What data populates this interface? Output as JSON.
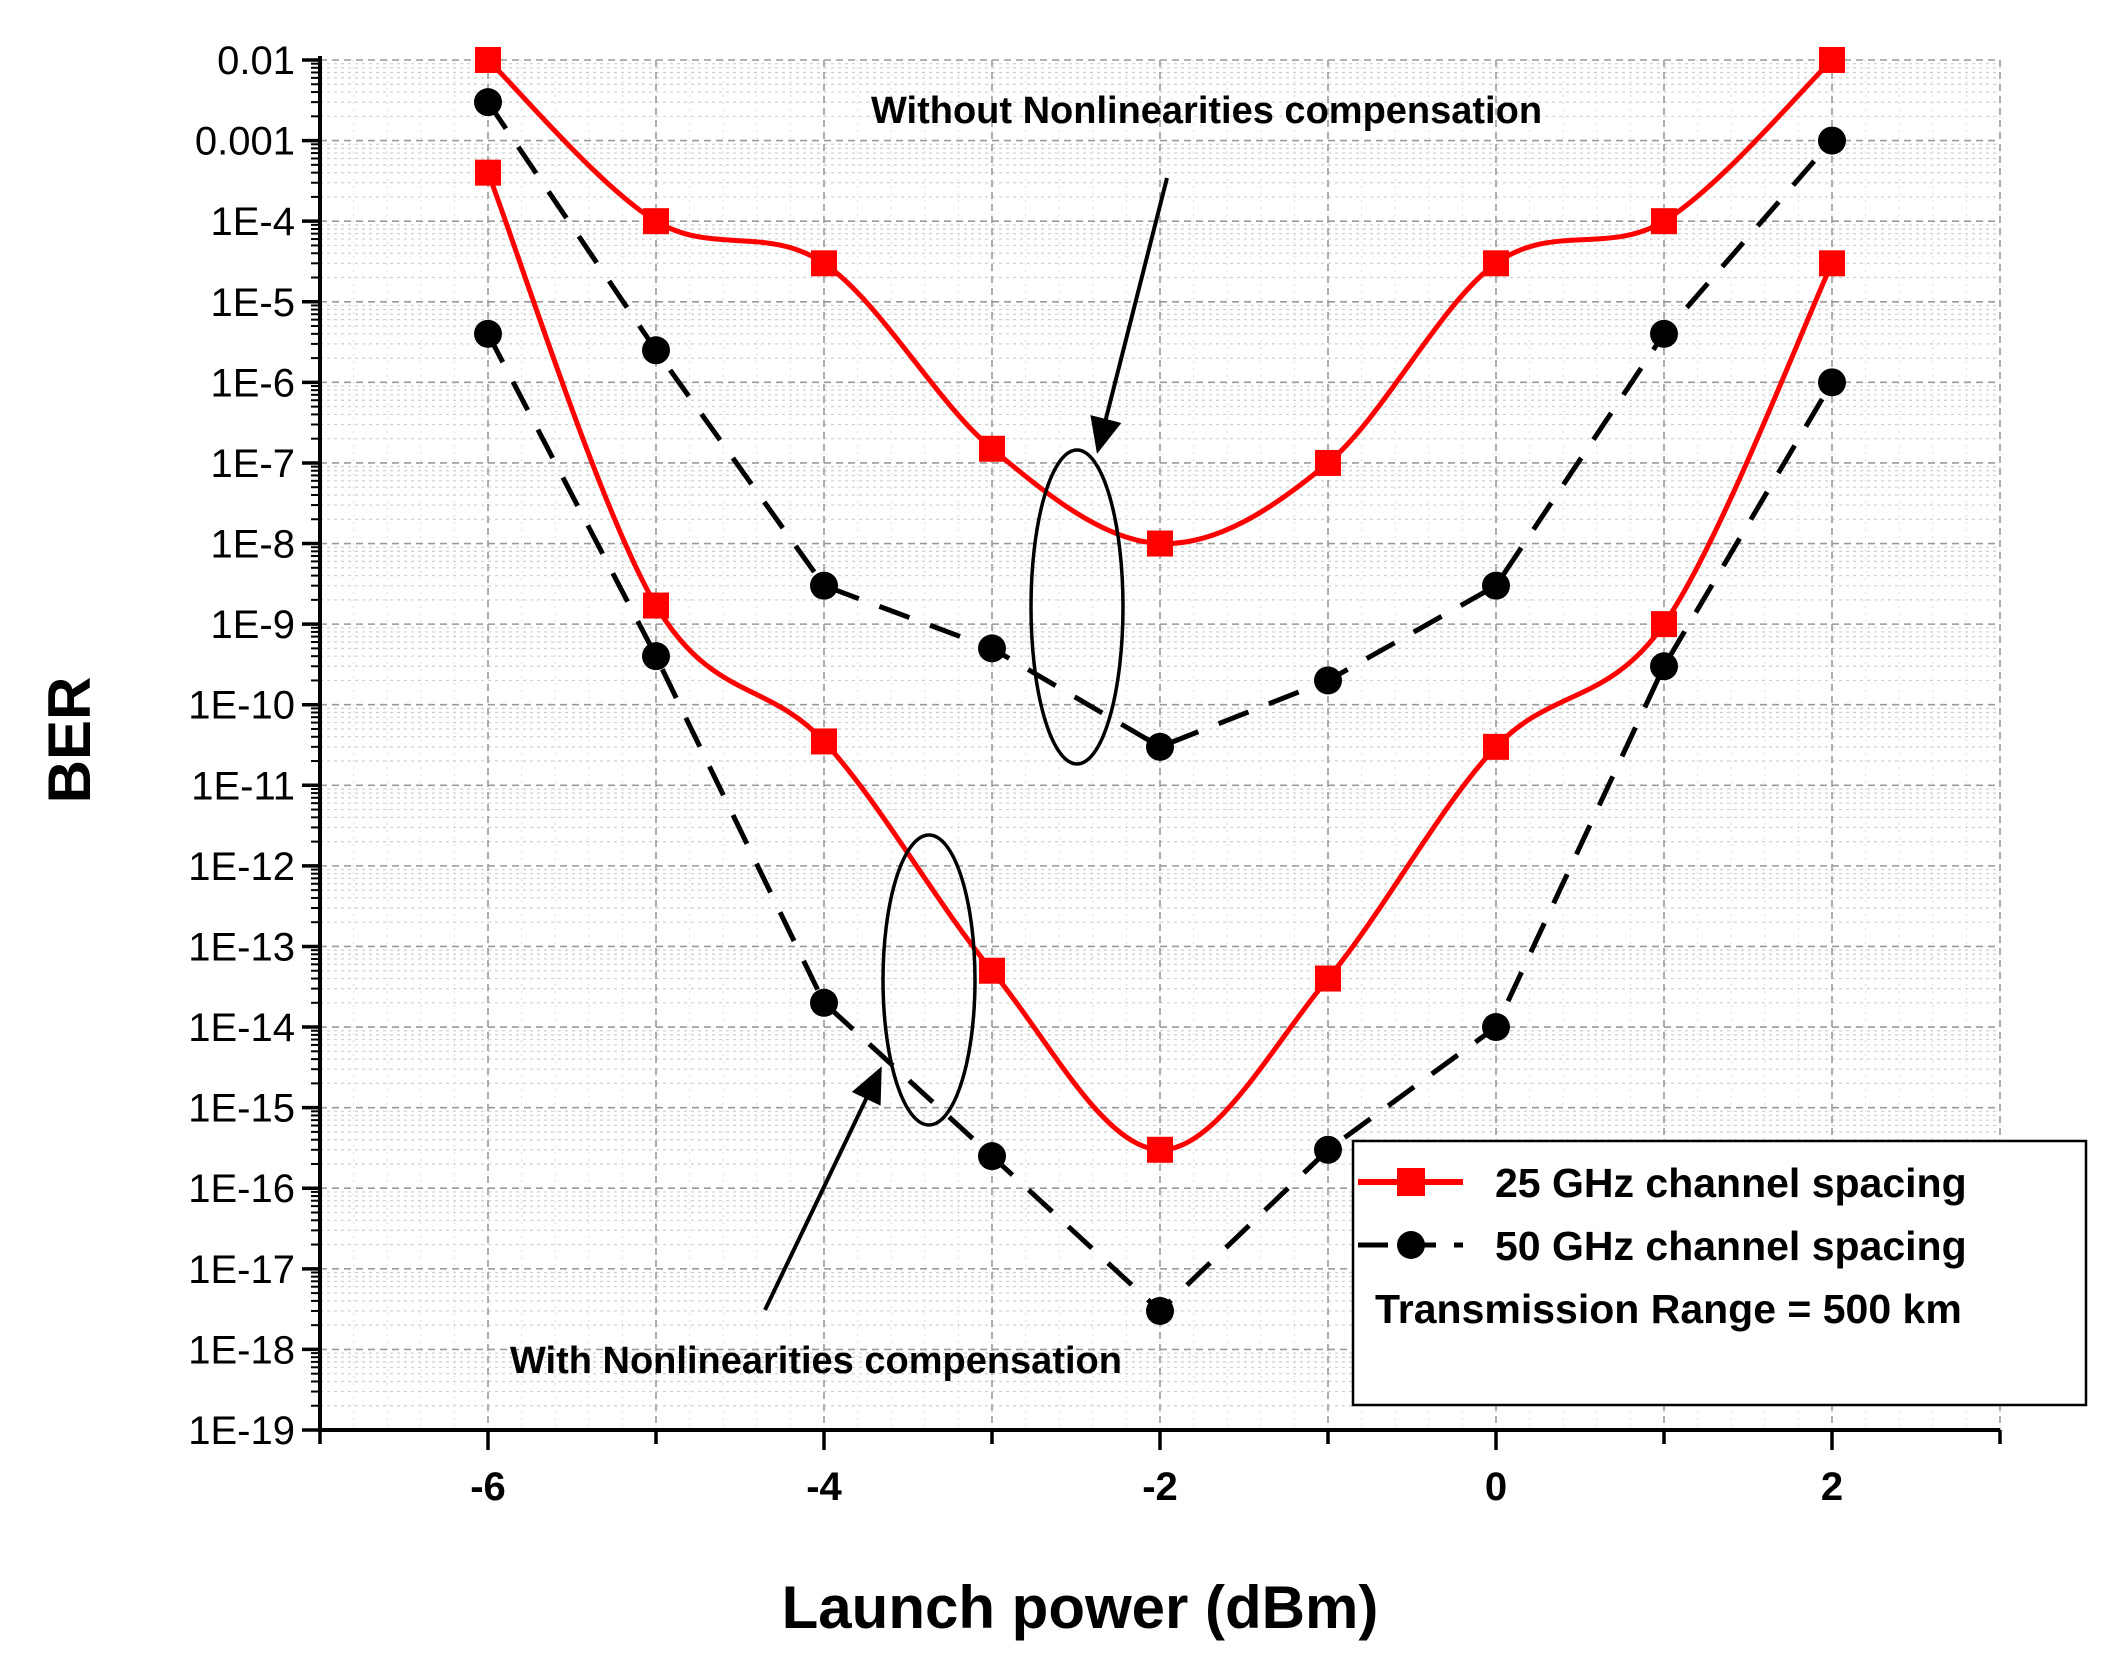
{
  "chart_data": {
    "type": "line",
    "title": "",
    "xlabel": "Launch power (dBm)",
    "ylabel": "BER",
    "xlim": [
      -7,
      3
    ],
    "ylim_log10": [
      -19,
      -2
    ],
    "x_ticks": [
      -6,
      -4,
      -2,
      0,
      2
    ],
    "x_tick_labels": [
      "-6",
      "-4",
      "-2",
      "0",
      "2"
    ],
    "y_tick_labels": [
      "0.01",
      "0.001",
      "1E-4",
      "1E-5",
      "1E-6",
      "1E-7",
      "1E-8",
      "1E-9",
      "1E-10",
      "1E-11",
      "1E-12",
      "1E-13",
      "1E-14",
      "1E-15",
      "1E-16",
      "1E-17",
      "1E-18",
      "1E-19"
    ],
    "grid": true,
    "x": [
      -6,
      -5,
      -4,
      -3,
      -2,
      -1,
      0,
      1,
      2
    ],
    "series": [
      {
        "name": "25 GHz channel spacing",
        "group": "Without Nonlinearities compensation",
        "color": "#ff0000",
        "marker": "square",
        "style": "solid",
        "values": [
          0.01,
          0.0001,
          3e-05,
          1.5e-07,
          1e-08,
          1e-07,
          3e-05,
          0.0001,
          0.01
        ]
      },
      {
        "name": "50 GHz channel spacing",
        "group": "Without Nonlinearities compensation",
        "color": "#000000",
        "marker": "circle",
        "style": "dashed",
        "values": [
          0.003,
          2.5e-06,
          3e-09,
          5e-10,
          3e-11,
          2e-10,
          3e-09,
          4e-06,
          0.001
        ]
      },
      {
        "name": "25 GHz channel spacing",
        "group": "With Nonlinearities compensation",
        "color": "#ff0000",
        "marker": "square",
        "style": "solid",
        "values": [
          0.0004,
          1.7e-09,
          3.5e-11,
          5e-14,
          3e-16,
          4e-14,
          3e-11,
          1e-09,
          3e-05
        ]
      },
      {
        "name": "50 GHz channel spacing",
        "group": "With Nonlinearities compensation",
        "color": "#000000",
        "marker": "circle",
        "style": "dashed",
        "values": [
          4e-06,
          4e-10,
          2e-14,
          2.5e-16,
          3e-18,
          3e-16,
          1e-14,
          3e-10,
          1e-06
        ]
      }
    ],
    "annotations": {
      "top": "Without Nonlinearities compensation",
      "bottom": "With Nonlinearities compensation"
    },
    "legend": {
      "position": "bottom-right",
      "entries": [
        "25 GHz channel spacing",
        "50 GHz channel spacing"
      ],
      "note": "Transmission Range = 500 km"
    }
  }
}
